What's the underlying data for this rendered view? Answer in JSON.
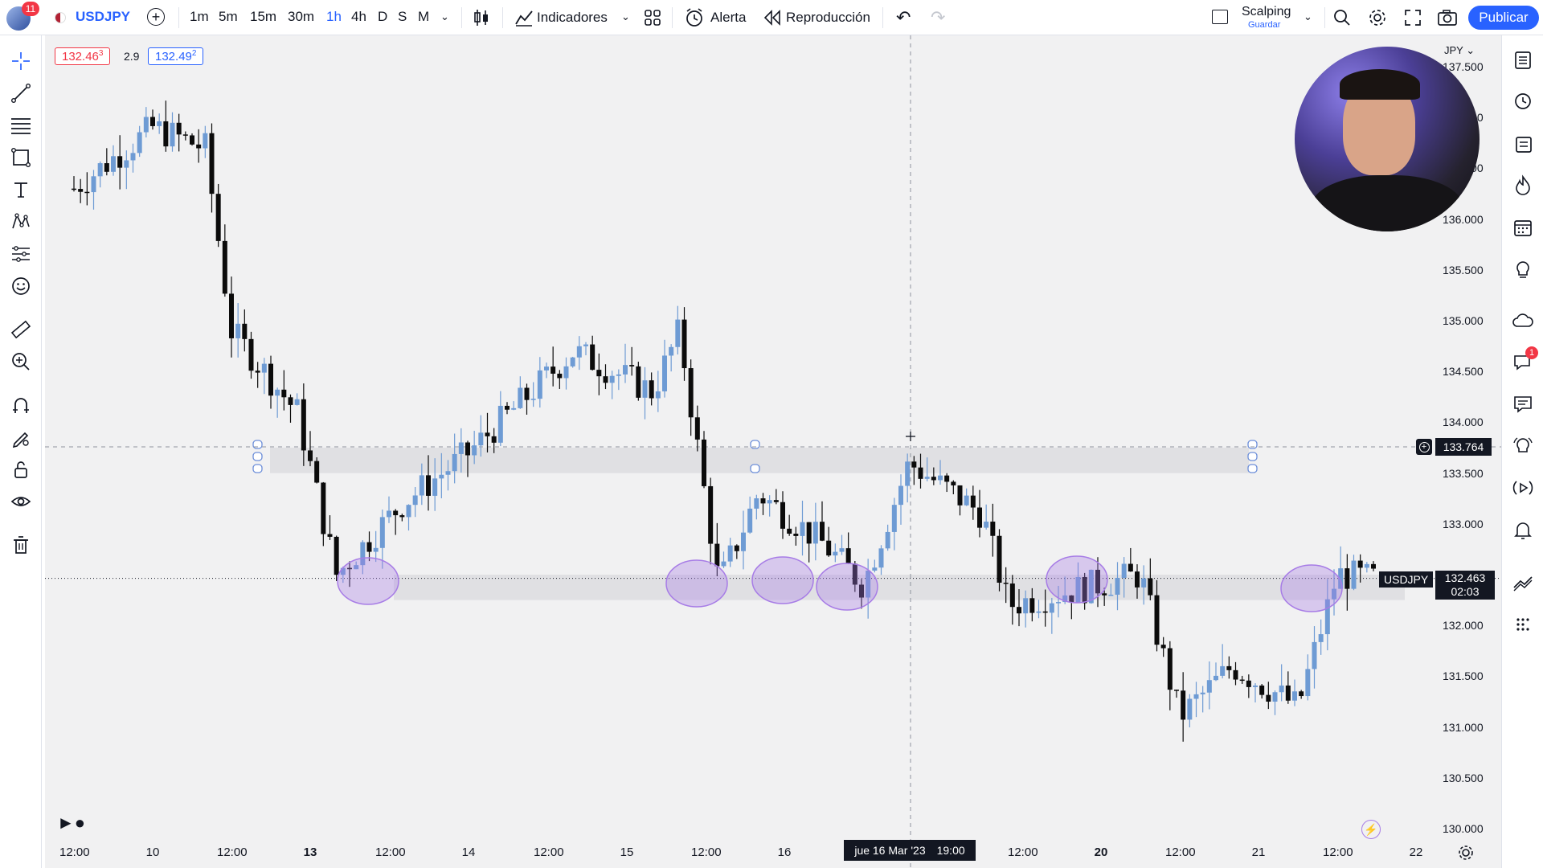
{
  "header": {
    "notifications": "11",
    "symbol": "USDJPY",
    "timeframes": [
      "1m",
      "5m",
      "15m",
      "30m",
      "1h",
      "4h",
      "D",
      "S",
      "M"
    ],
    "active_timeframe": "1h",
    "indicators_label": "Indicadores",
    "alert_label": "Alerta",
    "replay_label": "Reproducción",
    "layout_name": "Scalping",
    "layout_sub": "Guardar",
    "publish_label": "Publicar"
  },
  "legend": {
    "bid": "132.46",
    "bid_sup": "3",
    "spread": "2.9",
    "ask": "132.49",
    "ask_sup": "2"
  },
  "axis": {
    "currency": "JPY",
    "cursor_price": "133.764",
    "last_price": "132.463",
    "countdown": "02:03",
    "symbol_tag": "USDJPY",
    "crosshair_date": "jue 16 Mar '23",
    "crosshair_time": "19:00",
    "y_ticks": [
      "137.500",
      "137.000",
      "136.500",
      "136.000",
      "135.500",
      "135.000",
      "134.500",
      "134.000",
      "133.500",
      "133.000",
      "132.500",
      "132.000",
      "131.500",
      "131.000",
      "130.500",
      "130.000"
    ],
    "x_ticks": [
      {
        "label": "12:00",
        "bold": false
      },
      {
        "label": "10",
        "bold": false
      },
      {
        "label": "12:00",
        "bold": false
      },
      {
        "label": "13",
        "bold": true
      },
      {
        "label": "12:00",
        "bold": false
      },
      {
        "label": "14",
        "bold": false
      },
      {
        "label": "12:00",
        "bold": false
      },
      {
        "label": "15",
        "bold": false
      },
      {
        "label": "12:00",
        "bold": false
      },
      {
        "label": "16",
        "bold": false
      },
      {
        "label": "12:00",
        "bold": false
      },
      {
        "label": "20",
        "bold": true
      },
      {
        "label": "12:00",
        "bold": false
      },
      {
        "label": "21",
        "bold": false
      },
      {
        "label": "12:00",
        "bold": false
      },
      {
        "label": "22",
        "bold": false
      }
    ]
  },
  "right_toolbar_badge": "1",
  "chart_data": {
    "type": "candlestick",
    "symbol": "USDJPY",
    "interval": "1h",
    "y_range": [
      130.0,
      137.5
    ],
    "x_range_dates": [
      "2023-03-09 12:00",
      "2023-03-22 00:00"
    ],
    "resistance_zone": [
      133.5,
      133.75
    ],
    "support_zone": [
      132.25,
      132.5
    ],
    "highlighted_touches": [
      "2023-03-13",
      "2023-03-15",
      "2023-03-16 a",
      "2023-03-16 b",
      "2023-03-17",
      "2023-03-21"
    ],
    "colors": {
      "up": "#6e9bd4",
      "down": "#0b0b0b",
      "zone": "#dcdcde",
      "ellipse": "#a77ce6"
    },
    "approx_path": [
      {
        "t": "Mar 9 12:00",
        "v": 136.3
      },
      {
        "t": "Mar 10 00:00",
        "v": 136.9
      },
      {
        "t": "Mar 10 08:00",
        "v": 136.7
      },
      {
        "t": "Mar 10 12:00",
        "v": 134.9
      },
      {
        "t": "Mar 10 22:00",
        "v": 134.1
      },
      {
        "t": "Mar 13 04:00",
        "v": 132.5
      },
      {
        "t": "Mar 13 14:00",
        "v": 133.2
      },
      {
        "t": "Mar 14 00:00",
        "v": 133.7
      },
      {
        "t": "Mar 14 16:00",
        "v": 134.7
      },
      {
        "t": "Mar 15 04:00",
        "v": 134.3
      },
      {
        "t": "Mar 15 08:00",
        "v": 134.9
      },
      {
        "t": "Mar 15 14:00",
        "v": 132.4
      },
      {
        "t": "Mar 15 20:00",
        "v": 133.3
      },
      {
        "t": "Mar 16 06:00",
        "v": 132.8
      },
      {
        "t": "Mar 16 12:00",
        "v": 132.4
      },
      {
        "t": "Mar 16 19:00",
        "v": 133.6
      },
      {
        "t": "Mar 17 06:00",
        "v": 133.1
      },
      {
        "t": "Mar 17 10:00",
        "v": 132.2
      },
      {
        "t": "Mar 20 06:00",
        "v": 132.5
      },
      {
        "t": "Mar 20 12:00",
        "v": 131.1
      },
      {
        "t": "Mar 20 20:00",
        "v": 131.6
      },
      {
        "t": "Mar 21 06:00",
        "v": 131.2
      },
      {
        "t": "Mar 21 12:00",
        "v": 132.5
      },
      {
        "t": "Mar 21 18:00",
        "v": 132.46
      }
    ]
  }
}
